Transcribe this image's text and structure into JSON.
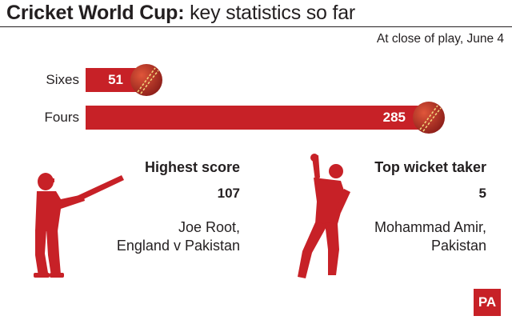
{
  "header": {
    "title_bold": "Cricket World Cup:",
    "title_rest": " key statistics so far",
    "subtitle": "At close of play, June 4"
  },
  "colors": {
    "accent": "#c72127",
    "text": "#231f20",
    "ball": "#c0392b"
  },
  "chart_data": {
    "type": "bar",
    "orientation": "horizontal",
    "categories": [
      "Sixes",
      "Fours"
    ],
    "values": [
      51,
      285
    ]
  },
  "stats": {
    "highest_score": {
      "heading": "Highest score",
      "value": "107",
      "name_line1": "Joe Root,",
      "name_line2": "England v Pakistan"
    },
    "top_wicket_taker": {
      "heading": "Top wicket taker",
      "value": "5",
      "name_line1": "Mohammad Amir,",
      "name_line2": "Pakistan"
    }
  },
  "icons": {
    "batsman": "batsman-silhouette-icon",
    "bowler": "bowler-silhouette-icon",
    "ball": "cricket-ball-icon"
  },
  "logo": {
    "text": "PA"
  }
}
